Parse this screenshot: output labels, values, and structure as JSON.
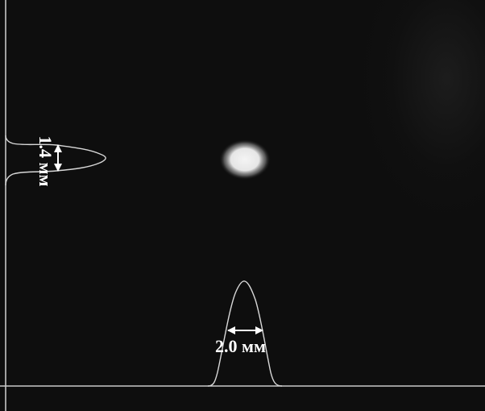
{
  "annotations": {
    "vertical_width": "1.4 мм",
    "horizontal_width": "2.0 мм"
  },
  "colors": {
    "background": "#0e0e0e",
    "profile_line": "#d8d8d8",
    "spot": "#f0f0f0",
    "arrow": "#ffffff"
  }
}
